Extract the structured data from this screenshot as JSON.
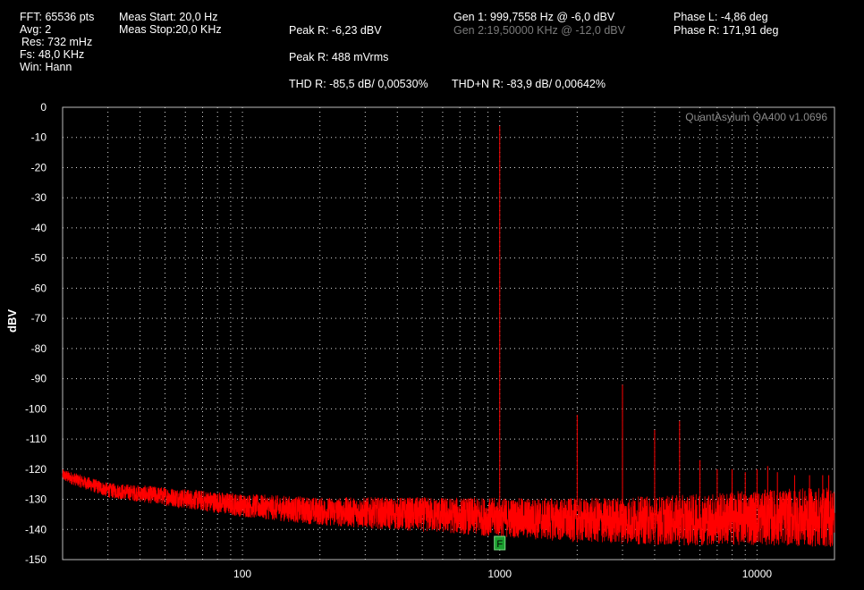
{
  "header": {
    "col1": [
      "FFT: 65536 pts",
      "Avg: 2",
      "Res: 732 mHz",
      "Fs: 48,0 KHz",
      "Win: Hann"
    ],
    "col2": [
      "Meas Start: 20,0 Hz",
      "Meas Stop:20,0 KHz"
    ],
    "peak_r_dbv": "Peak R: -6,23 dBV",
    "peak_r_vrms": "Peak R: 488 mVrms",
    "thd_r": "THD R: -85,5 dB/ 0,00530%",
    "thdn_r": "THD+N R: -83,9 dB/ 0,00642%",
    "gen1": "Gen 1: 999,7558 Hz @ -6,0  dBV",
    "gen2": "Gen 2:19,50000 KHz @ -12,0  dBV",
    "phase_l": "Phase L: -4,86 deg",
    "phase_r": "Phase R: 171,91 deg"
  },
  "chart_data": {
    "type": "line",
    "watermark": "QuantAsylum QA400 v1.0696",
    "ylabel": "dBV",
    "xscale": "log",
    "xlim": [
      20,
      20000
    ],
    "ylim": [
      -150,
      0
    ],
    "yticks": [
      0,
      -10,
      -20,
      -30,
      -40,
      -50,
      -60,
      -70,
      -80,
      -90,
      -100,
      -110,
      -120,
      -130,
      -140,
      -150
    ],
    "yticklabels": [
      "0",
      "-10",
      "-20",
      "-30",
      "-40",
      "-50",
      "-60",
      "-70",
      "-80",
      "-90",
      "-100",
      "-110",
      "-120",
      "-130",
      "-140",
      "-150"
    ],
    "xticks": [
      100,
      1000,
      10000
    ],
    "xticklabels": [
      "100",
      "1000",
      "10000"
    ],
    "grid": true,
    "series_color": "#ff0000",
    "noise_floor": [
      {
        "x": 20,
        "y": -122
      },
      {
        "x": 30,
        "y": -127
      },
      {
        "x": 50,
        "y": -129
      },
      {
        "x": 100,
        "y": -132
      },
      {
        "x": 200,
        "y": -134
      },
      {
        "x": 500,
        "y": -135
      },
      {
        "x": 1000,
        "y": -136
      },
      {
        "x": 2000,
        "y": -137
      },
      {
        "x": 5000,
        "y": -137
      },
      {
        "x": 10000,
        "y": -136
      },
      {
        "x": 20000,
        "y": -136
      }
    ],
    "peaks": [
      {
        "x": 1000,
        "y": -6.2
      },
      {
        "x": 2000,
        "y": -102
      },
      {
        "x": 3000,
        "y": -92
      },
      {
        "x": 4000,
        "y": -107
      },
      {
        "x": 5000,
        "y": -104
      },
      {
        "x": 6000,
        "y": -117
      },
      {
        "x": 7000,
        "y": -120
      },
      {
        "x": 8000,
        "y": -120
      },
      {
        "x": 9000,
        "y": -121
      },
      {
        "x": 10000,
        "y": -120
      },
      {
        "x": 11000,
        "y": -119
      },
      {
        "x": 12000,
        "y": -121
      },
      {
        "x": 14000,
        "y": -122
      },
      {
        "x": 16000,
        "y": -122
      },
      {
        "x": 18000,
        "y": -122
      },
      {
        "x": 19000,
        "y": -122
      }
    ],
    "marker": {
      "label": "F",
      "x": 1000,
      "color": "#1a9e2e"
    }
  }
}
